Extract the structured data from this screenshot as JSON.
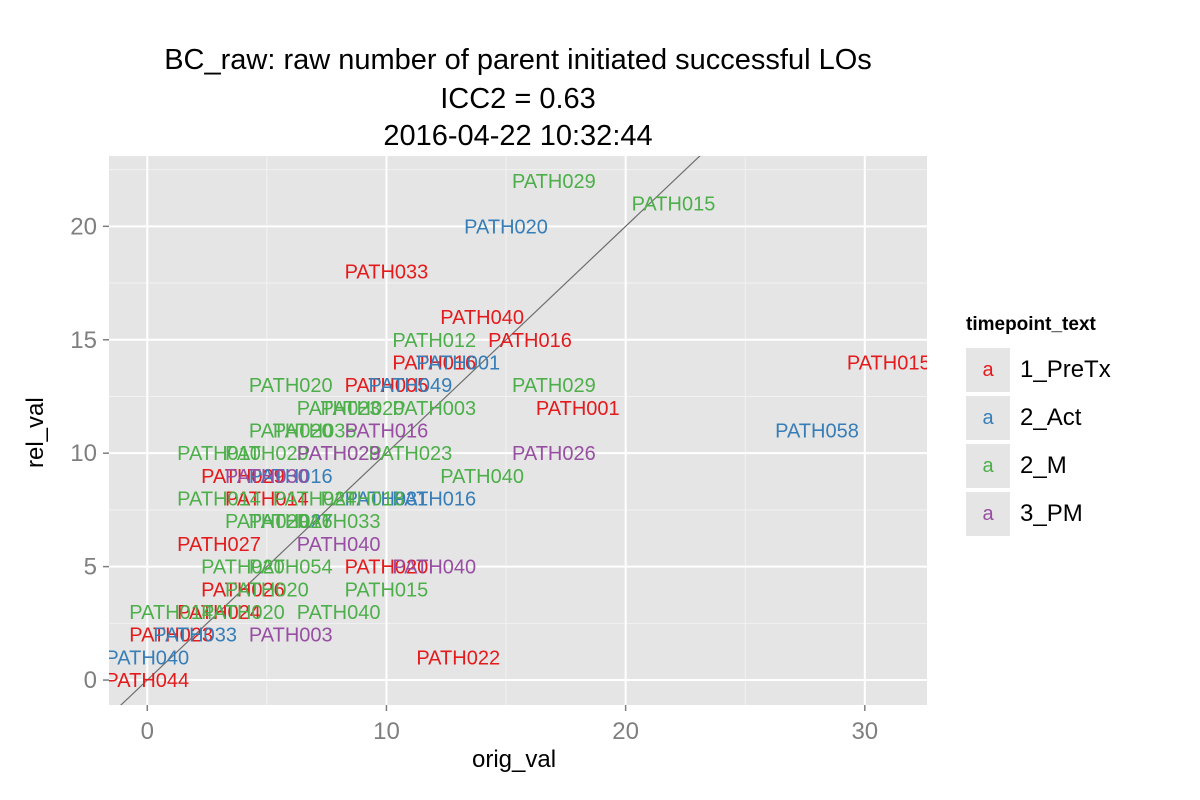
{
  "chart_data": {
    "type": "scatter",
    "title_lines": [
      "BC_raw: raw number of parent initiated successful LOs",
      "ICC2 = 0.63",
      "2016-04-22 10:32:44"
    ],
    "xlabel": "orig_val",
    "ylabel": "rel_val",
    "xlim": [
      -1.6,
      32.6
    ],
    "ylim": [
      -1.1,
      23.1
    ],
    "x_ticks": [
      0,
      10,
      20,
      30
    ],
    "y_ticks": [
      0,
      5,
      10,
      15,
      20
    ],
    "grid": true,
    "reference_line": {
      "type": "identity",
      "note": "y = x"
    },
    "legend": {
      "title": "timepoint_text",
      "placement": "right",
      "key_glyph": "a",
      "entries": [
        {
          "name": "1_PreTx",
          "color": "#E41A1C"
        },
        {
          "name": "2_Act",
          "color": "#377EB8"
        },
        {
          "name": "2_M",
          "color": "#4DAF4A"
        },
        {
          "name": "3_PM",
          "color": "#984EA3"
        }
      ]
    },
    "series": [
      {
        "name": "1_PreTx",
        "color": "#E41A1C",
        "points": [
          {
            "x": 31,
            "y": 14,
            "label": "PATH015"
          },
          {
            "x": 18,
            "y": 12,
            "label": "PATH001"
          },
          {
            "x": 10,
            "y": 18,
            "label": "PATH033"
          },
          {
            "x": 14,
            "y": 16,
            "label": "PATH040"
          },
          {
            "x": 16,
            "y": 15,
            "label": "PATH016"
          },
          {
            "x": 12,
            "y": 14,
            "label": "PATH016"
          },
          {
            "x": 10,
            "y": 13,
            "label": "PATH005"
          },
          {
            "x": 13,
            "y": 1,
            "label": "PATH022"
          },
          {
            "x": 3,
            "y": 6,
            "label": "PATH027"
          },
          {
            "x": 10,
            "y": 5,
            "label": "PATH020"
          },
          {
            "x": 0,
            "y": 0,
            "label": "PATH044"
          },
          {
            "x": 1,
            "y": 2,
            "label": "PATH023"
          },
          {
            "x": 4,
            "y": 9,
            "label": "PATH029"
          },
          {
            "x": 4,
            "y": 4,
            "label": "PATH026"
          },
          {
            "x": 3,
            "y": 3,
            "label": "PATH024"
          },
          {
            "x": 5,
            "y": 8,
            "label": "PATH014"
          }
        ]
      },
      {
        "name": "2_Act",
        "color": "#377EB8",
        "points": [
          {
            "x": 15,
            "y": 20,
            "label": "PATH020"
          },
          {
            "x": 28,
            "y": 11,
            "label": "PATH058"
          },
          {
            "x": 13,
            "y": 14,
            "label": "PATH001"
          },
          {
            "x": 11,
            "y": 13,
            "label": "PATH049"
          },
          {
            "x": 0,
            "y": 1,
            "label": "PATH040"
          },
          {
            "x": 2,
            "y": 2,
            "label": "PATH033"
          },
          {
            "x": 6,
            "y": 9,
            "label": "PATH016"
          },
          {
            "x": 10,
            "y": 8,
            "label": "PATH031"
          },
          {
            "x": 12,
            "y": 8,
            "label": "PATH016"
          },
          {
            "x": 6,
            "y": 7,
            "label": "PATH027"
          }
        ]
      },
      {
        "name": "2_M",
        "color": "#4DAF4A",
        "points": [
          {
            "x": 17,
            "y": 22,
            "label": "PATH029"
          },
          {
            "x": 22,
            "y": 21,
            "label": "PATH015"
          },
          {
            "x": 12,
            "y": 15,
            "label": "PATH012"
          },
          {
            "x": 6,
            "y": 13,
            "label": "PATH020"
          },
          {
            "x": 17,
            "y": 13,
            "label": "PATH029"
          },
          {
            "x": 8,
            "y": 12,
            "label": "PATH023"
          },
          {
            "x": 9,
            "y": 12,
            "label": "PATH020"
          },
          {
            "x": 12,
            "y": 12,
            "label": "PATH003"
          },
          {
            "x": 6,
            "y": 11,
            "label": "PATH020"
          },
          {
            "x": 7,
            "y": 11,
            "label": "PATH035"
          },
          {
            "x": 3,
            "y": 10,
            "label": "PATH010"
          },
          {
            "x": 5,
            "y": 10,
            "label": "PATH029"
          },
          {
            "x": 8,
            "y": 10,
            "label": "PATH023"
          },
          {
            "x": 11,
            "y": 10,
            "label": "PATH023"
          },
          {
            "x": 14,
            "y": 9,
            "label": "PATH040"
          },
          {
            "x": 3,
            "y": 8,
            "label": "PATH014"
          },
          {
            "x": 7,
            "y": 8,
            "label": "PATH024"
          },
          {
            "x": 9,
            "y": 8,
            "label": "PATH018"
          },
          {
            "x": 5,
            "y": 7,
            "label": "PATH020"
          },
          {
            "x": 6,
            "y": 7,
            "label": "PATH016"
          },
          {
            "x": 8,
            "y": 7,
            "label": "PATH033"
          },
          {
            "x": 4,
            "y": 5,
            "label": "PATH020"
          },
          {
            "x": 6,
            "y": 5,
            "label": "PATH054"
          },
          {
            "x": 5,
            "y": 4,
            "label": "PATH020"
          },
          {
            "x": 10,
            "y": 4,
            "label": "PATH015"
          },
          {
            "x": 1,
            "y": 3,
            "label": "PATH014"
          },
          {
            "x": 4,
            "y": 3,
            "label": "PATH020"
          },
          {
            "x": 8,
            "y": 3,
            "label": "PATH040"
          }
        ]
      },
      {
        "name": "3_PM",
        "color": "#984EA3",
        "points": [
          {
            "x": 17,
            "y": 10,
            "label": "PATH026"
          },
          {
            "x": 10,
            "y": 11,
            "label": "PATH016"
          },
          {
            "x": 8,
            "y": 6,
            "label": "PATH040"
          },
          {
            "x": 12,
            "y": 5,
            "label": "PATH040"
          },
          {
            "x": 6,
            "y": 2,
            "label": "PATH003"
          },
          {
            "x": 5,
            "y": 9,
            "label": "PATH030"
          },
          {
            "x": 8,
            "y": 10,
            "label": "PATH029"
          }
        ]
      }
    ]
  }
}
